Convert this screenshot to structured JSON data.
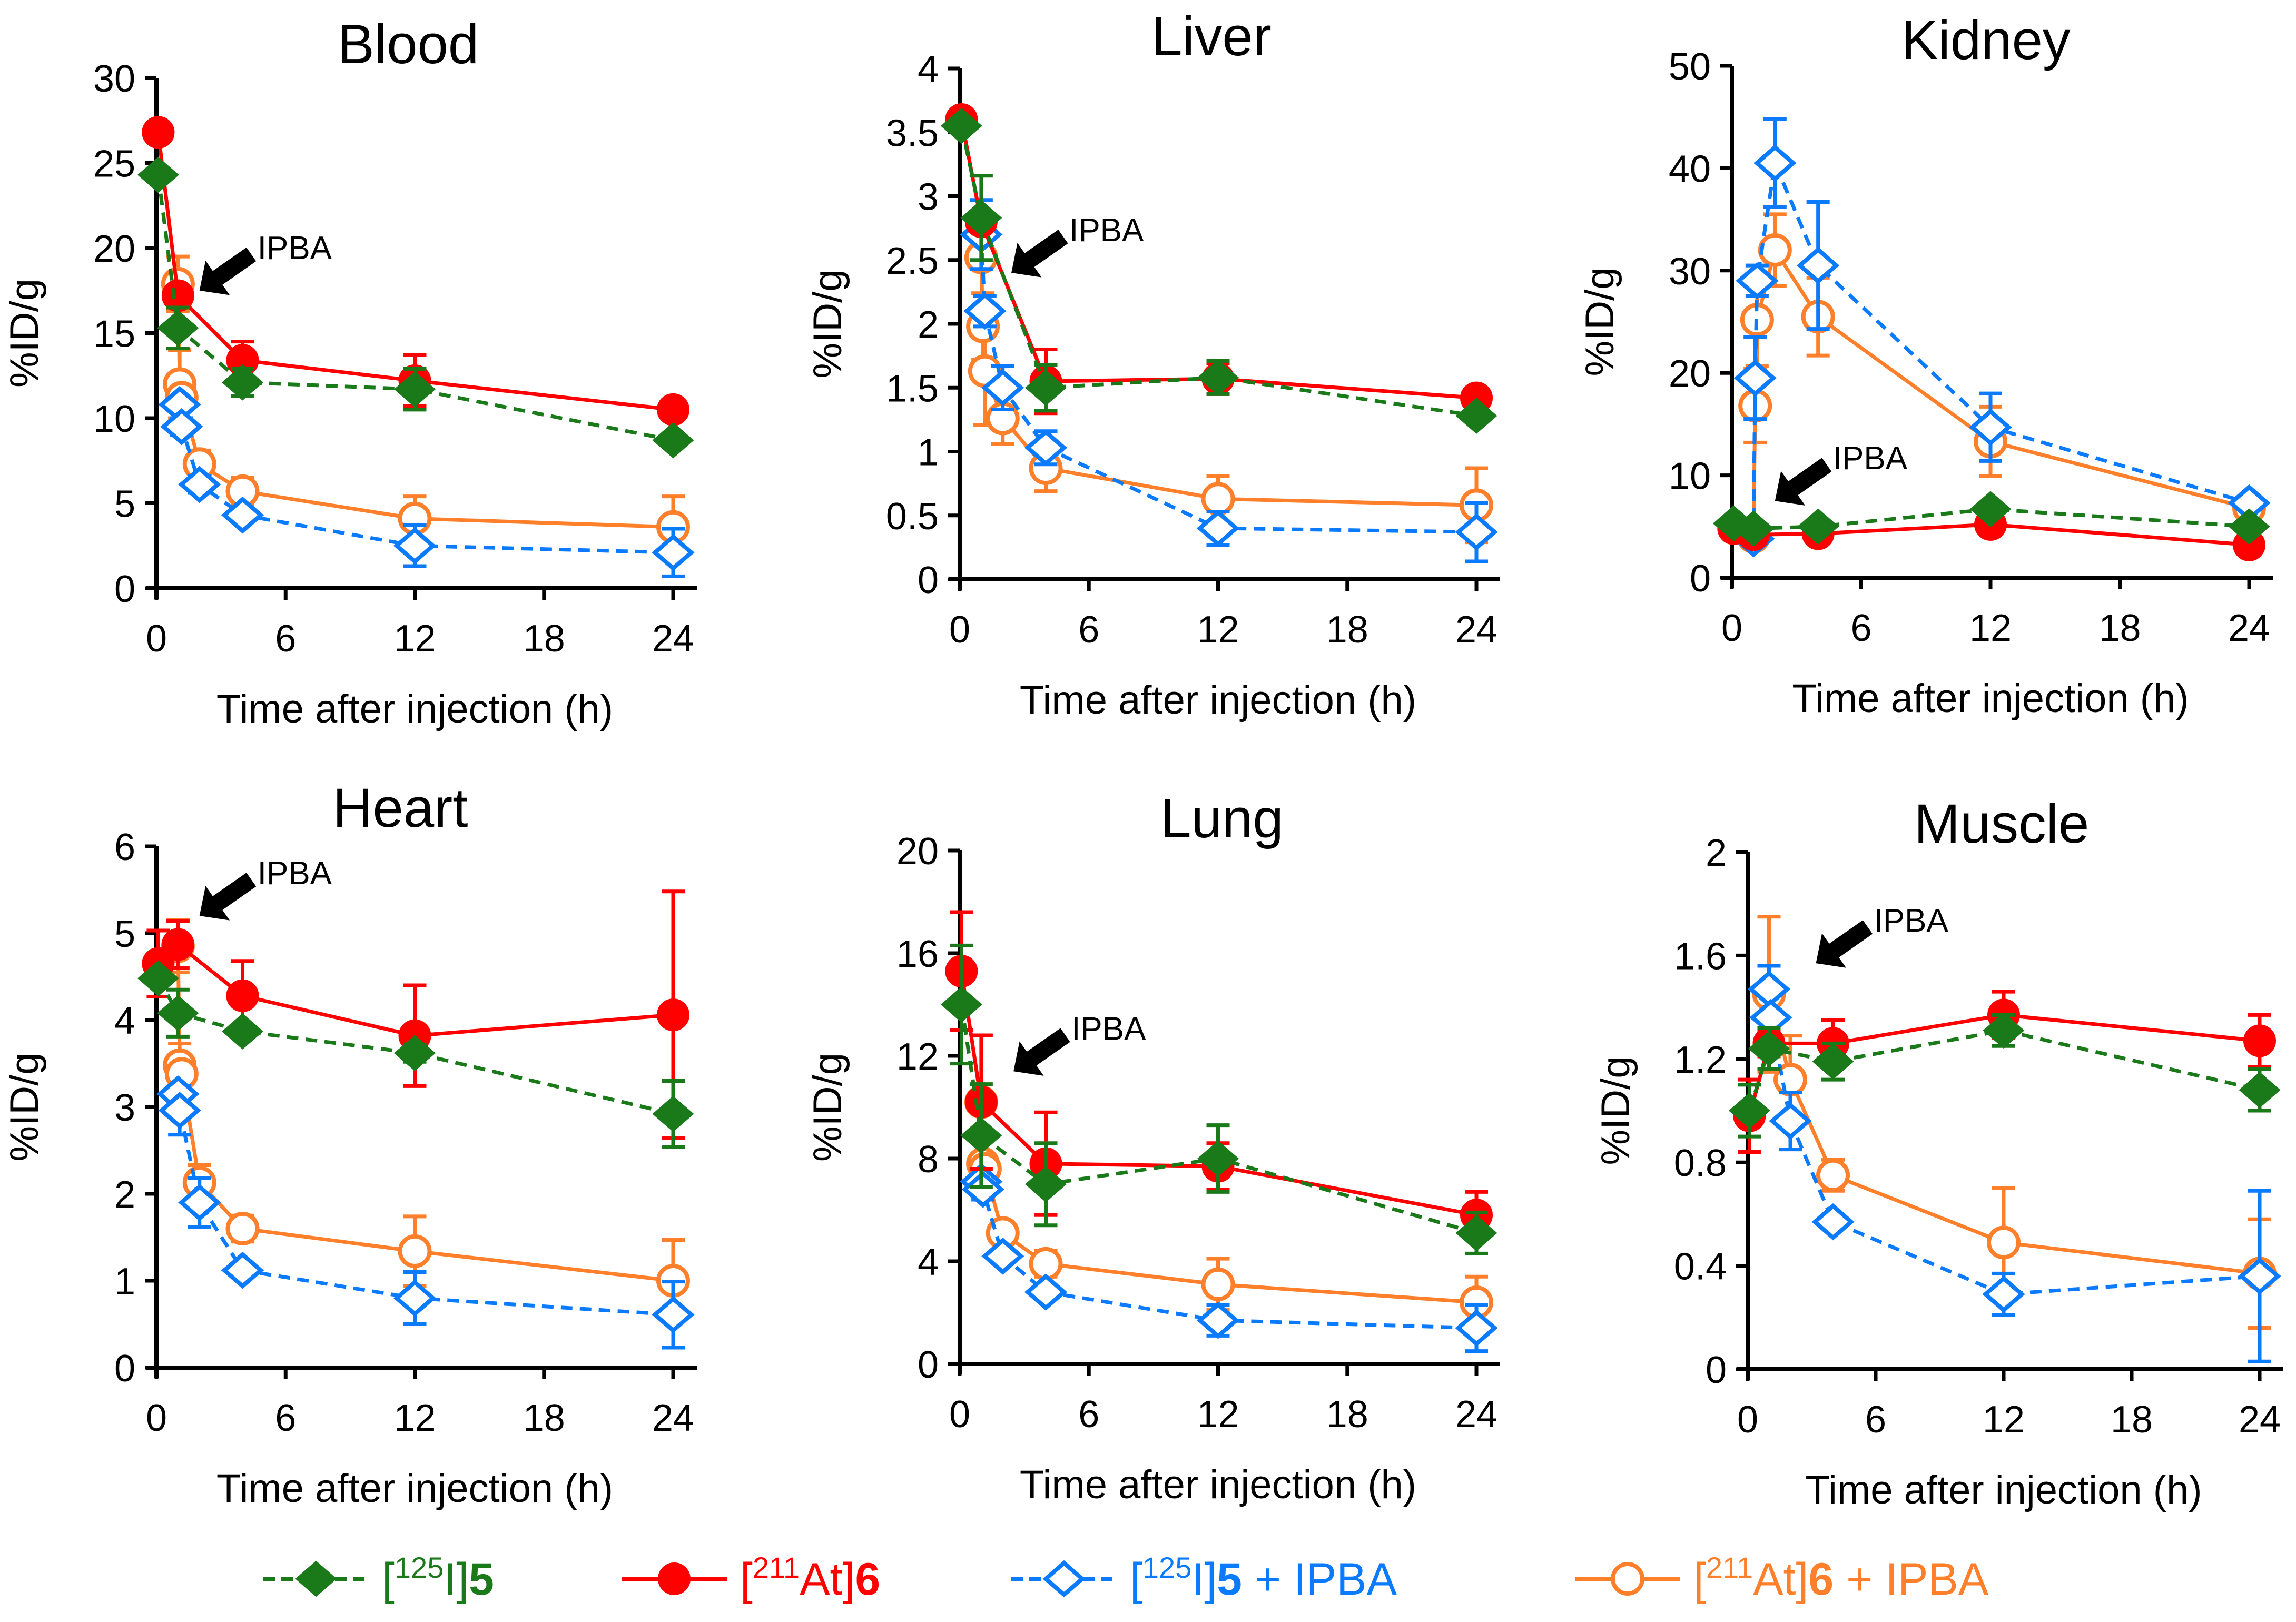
{
  "figure": {
    "legend": [
      {
        "key": "I125_5",
        "prefix": "[",
        "sup": "125",
        "mid": "I]",
        "bold": "5",
        "suffix": "",
        "color": "#1a7a1a",
        "marker": "diamond-filled",
        "dash": true
      },
      {
        "key": "At211_6",
        "prefix": "[",
        "sup": "211",
        "mid": "At]",
        "bold": "6",
        "suffix": "",
        "color": "#ff0000",
        "marker": "circle-filled",
        "dash": false
      },
      {
        "key": "I125_5_IPBA",
        "prefix": "[",
        "sup": "125",
        "mid": "I]",
        "bold": "5",
        "suffix": " + IPBA",
        "color": "#0a7aff",
        "marker": "diamond-open",
        "dash": true
      },
      {
        "key": "At211_6_IPBA",
        "prefix": "[",
        "sup": "211",
        "mid": "At]",
        "bold": "6",
        "suffix": " + IPBA",
        "color": "#ff7f2a",
        "marker": "circle-open",
        "dash": false
      }
    ],
    "annotation_label": "IPBA"
  },
  "chart_data": [
    {
      "type": "line",
      "title": "Blood",
      "xlabel": "Time after injection (h)",
      "ylabel": "%ID/g",
      "xlim": [
        0,
        24
      ],
      "xticks": [
        0,
        6,
        12,
        18,
        24
      ],
      "ylim": [
        0,
        30
      ],
      "yticks": [
        "0",
        "5",
        "10",
        "15",
        "20",
        "25",
        "30"
      ],
      "annotation": {
        "text": "IPBA",
        "x": 2.0,
        "y": 17.5
      },
      "series": [
        {
          "name": "[125I]5",
          "x": [
            0.083,
            1,
            4,
            12,
            24
          ],
          "y": [
            24.3,
            15.3,
            12.1,
            11.7,
            8.7
          ],
          "err": [
            0,
            1.2,
            0.8,
            1.2,
            0
          ]
        },
        {
          "name": "[211At]6",
          "x": [
            0.083,
            1,
            4,
            12,
            24
          ],
          "y": [
            26.8,
            17.2,
            13.4,
            12.2,
            10.5
          ],
          "err": [
            0,
            0,
            1.1,
            1.5,
            0
          ]
        },
        {
          "name": "[125I]5 + IPBA",
          "x": [
            1.08,
            1.17,
            2,
            4,
            12,
            24
          ],
          "y": [
            10.8,
            9.5,
            6.1,
            4.3,
            2.5,
            2.1
          ],
          "err": [
            0,
            0.5,
            0.5,
            0.3,
            1.2,
            1.4
          ]
        },
        {
          "name": "[211At]6 + IPBA",
          "x": [
            1,
            1.08,
            1.17,
            2,
            4,
            12,
            24
          ],
          "y": [
            17.9,
            12.0,
            11.2,
            7.3,
            5.7,
            4.1,
            3.6
          ],
          "err": [
            1.6,
            2.0,
            0.5,
            0.8,
            0.8,
            1.3,
            1.8
          ]
        }
      ]
    },
    {
      "type": "line",
      "title": "Liver",
      "xlabel": "Time after injection (h)",
      "ylabel": "%ID/g",
      "xlim": [
        0,
        24
      ],
      "xticks": [
        0,
        6,
        12,
        18,
        24
      ],
      "ylim": [
        0,
        4
      ],
      "yticks": [
        "0",
        "0.5",
        "1",
        "1.5",
        "2",
        "2.5",
        "3",
        "3.5",
        "4"
      ],
      "annotation": {
        "text": "IPBA",
        "x": 2.4,
        "y": 2.4
      },
      "series": [
        {
          "name": "[125I]5",
          "x": [
            0.083,
            1,
            4,
            12,
            24
          ],
          "y": [
            3.55,
            2.83,
            1.5,
            1.58,
            1.28
          ],
          "err": [
            0,
            0.33,
            0.18,
            0.13,
            0
          ]
        },
        {
          "name": "[211At]6",
          "x": [
            0.083,
            1,
            4,
            12,
            24
          ],
          "y": [
            3.6,
            2.8,
            1.55,
            1.57,
            1.42
          ],
          "err": [
            0,
            0,
            0.25,
            0.12,
            0
          ]
        },
        {
          "name": "[125I]5 + IPBA",
          "x": [
            1,
            1.17,
            2,
            4,
            12,
            24
          ],
          "y": [
            2.7,
            2.1,
            1.5,
            1.03,
            0.4,
            0.37
          ],
          "err": [
            0.27,
            0.12,
            0.17,
            0.13,
            0.13,
            0.23
          ]
        },
        {
          "name": "[211At]6 + IPBA",
          "x": [
            1,
            1.08,
            1.17,
            2,
            4,
            12,
            24
          ],
          "y": [
            2.52,
            1.98,
            1.63,
            1.26,
            0.87,
            0.63,
            0.58
          ],
          "err": [
            0,
            0.26,
            0.42,
            0.2,
            0.18,
            0.18,
            0.29
          ]
        }
      ]
    },
    {
      "type": "line",
      "title": "Kidney",
      "xlabel": "Time after injection (h)",
      "ylabel": "%ID/g",
      "xlim": [
        0,
        24
      ],
      "xticks": [
        0,
        6,
        12,
        18,
        24
      ],
      "ylim": [
        0,
        50
      ],
      "yticks": [
        "0",
        "10",
        "20",
        "30",
        "40",
        "50"
      ],
      "annotation": {
        "text": "IPBA",
        "x": 2.0,
        "y": 7.5
      },
      "series": [
        {
          "name": "[125I]5",
          "x": [
            0.083,
            1,
            4,
            12,
            24
          ],
          "y": [
            5.3,
            4.8,
            5.0,
            6.7,
            5.0
          ],
          "err": [
            0,
            0,
            0,
            0,
            0
          ]
        },
        {
          "name": "[211At]6",
          "x": [
            0.083,
            1,
            4,
            12,
            24
          ],
          "y": [
            4.8,
            4.2,
            4.3,
            5.2,
            3.2
          ],
          "err": [
            0,
            0,
            0,
            0,
            0
          ]
        },
        {
          "name": "[125I]5 + IPBA",
          "x": [
            1,
            1.08,
            1.17,
            2,
            4,
            12,
            24
          ],
          "y": [
            3.8,
            19.5,
            29.0,
            40.5,
            30.5,
            14.7,
            7.3
          ],
          "err": [
            0,
            4.0,
            1.5,
            4.3,
            6.2,
            3.3,
            0
          ]
        },
        {
          "name": "[211At]6 + IPBA",
          "x": [
            1,
            1.08,
            1.17,
            2,
            4,
            12,
            24
          ],
          "y": [
            4.0,
            16.8,
            25.2,
            32.0,
            25.5,
            13.3,
            6.8
          ],
          "err": [
            0,
            3.6,
            4.5,
            3.5,
            3.8,
            3.4,
            0
          ]
        }
      ]
    },
    {
      "type": "line",
      "title": "Heart",
      "xlabel": "Time after injection (h)",
      "ylabel": "%ID/g",
      "xlim": [
        0,
        24
      ],
      "xticks": [
        0,
        6,
        12,
        18,
        24
      ],
      "ylim": [
        0,
        6
      ],
      "yticks": [
        "0",
        "1",
        "2",
        "3",
        "4",
        "5",
        "6"
      ],
      "annotation": {
        "text": "IPBA",
        "x": 2.0,
        "y": 5.2
      },
      "series": [
        {
          "name": "[125I]5",
          "x": [
            0.083,
            1,
            4,
            12,
            24
          ],
          "y": [
            4.48,
            4.08,
            3.87,
            3.62,
            2.92
          ],
          "err": [
            0,
            0.27,
            0,
            0.1,
            0.38
          ]
        },
        {
          "name": "[211At]6",
          "x": [
            0.083,
            1,
            4,
            12,
            24
          ],
          "y": [
            4.65,
            4.87,
            4.28,
            3.82,
            4.06
          ],
          "err": [
            0.38,
            0.27,
            0.4,
            0.58,
            1.42
          ]
        },
        {
          "name": "[125I]5 + IPBA",
          "x": [
            1,
            1.08,
            2,
            4,
            12,
            24
          ],
          "y": [
            3.15,
            2.96,
            1.9,
            1.12,
            0.8,
            0.61
          ],
          "err": [
            0,
            0.28,
            0.28,
            0,
            0.3,
            0.38
          ]
        },
        {
          "name": "[211At]6 + IPBA",
          "x": [
            1,
            1.08,
            1.17,
            2,
            4,
            12,
            24
          ],
          "y": [
            4.85,
            3.48,
            3.38,
            2.13,
            1.6,
            1.34,
            1.0
          ],
          "err": [
            0.3,
            0.25,
            0,
            0.2,
            0.15,
            0.4,
            0.47
          ]
        }
      ]
    },
    {
      "type": "line",
      "title": "Lung",
      "xlabel": "Time after injection (h)",
      "ylabel": "%ID/g",
      "xlim": [
        0,
        24
      ],
      "xticks": [
        0,
        6,
        12,
        18,
        24
      ],
      "ylim": [
        0,
        20
      ],
      "yticks": [
        "0",
        "4",
        "8",
        "12",
        "16",
        "20"
      ],
      "annotation": {
        "text": "IPBA",
        "x": 2.5,
        "y": 11.4
      },
      "series": [
        {
          "name": "[125I]5",
          "x": [
            0.083,
            1,
            4,
            12,
            24
          ],
          "y": [
            14.0,
            8.9,
            7.0,
            8.0,
            5.1
          ],
          "err": [
            2.3,
            2.0,
            1.6,
            1.3,
            0.8
          ]
        },
        {
          "name": "[211At]6",
          "x": [
            0.083,
            1,
            4,
            12,
            24
          ],
          "y": [
            15.3,
            10.2,
            7.8,
            7.7,
            5.8
          ],
          "err": [
            2.3,
            2.6,
            2.0,
            0.9,
            0.9
          ]
        },
        {
          "name": "[125I]5 + IPBA",
          "x": [
            1,
            1.08,
            2,
            4,
            12,
            24
          ],
          "y": [
            7.1,
            6.8,
            4.2,
            2.8,
            1.7,
            1.4
          ],
          "err": [
            0,
            0.4,
            0,
            0,
            0.6,
            0.9
          ]
        },
        {
          "name": "[211At]6 + IPBA",
          "x": [
            1,
            1.08,
            1.17,
            2,
            4,
            12,
            24
          ],
          "y": [
            10.2,
            7.8,
            7.6,
            5.1,
            3.9,
            3.1,
            2.4
          ],
          "err": [
            0,
            0,
            0,
            0,
            0.5,
            1.0,
            1.0
          ]
        }
      ]
    },
    {
      "type": "line",
      "title": "Muscle",
      "xlabel": "Time after injection (h)",
      "ylabel": "%ID/g",
      "xlim": [
        0,
        24
      ],
      "xticks": [
        0,
        6,
        12,
        18,
        24
      ],
      "ylim": [
        0,
        2
      ],
      "yticks": [
        "0",
        "0.4",
        "0.8",
        "1.2",
        "1.6",
        "2"
      ],
      "annotation": {
        "text": "IPBA",
        "x": 3.2,
        "y": 1.57
      },
      "series": [
        {
          "name": "[125I]5",
          "x": [
            0.083,
            1,
            4,
            12,
            24
          ],
          "y": [
            1.0,
            1.24,
            1.19,
            1.31,
            1.08
          ],
          "err": [
            0.1,
            0.08,
            0.07,
            0.06,
            0.08
          ]
        },
        {
          "name": "[211At]6",
          "x": [
            0.083,
            1,
            4,
            12,
            24
          ],
          "y": [
            0.98,
            1.26,
            1.26,
            1.37,
            1.27
          ],
          "err": [
            0.14,
            0.05,
            0.09,
            0.09,
            0.1
          ]
        },
        {
          "name": "[125I]5 + IPBA",
          "x": [
            1,
            1.08,
            2,
            4,
            12,
            24
          ],
          "y": [
            1.47,
            1.36,
            0.96,
            0.57,
            0.29,
            0.36
          ],
          "err": [
            0.09,
            0,
            0.11,
            0,
            0.08,
            0.33
          ]
        },
        {
          "name": "[211At]6 + IPBA",
          "x": [
            1,
            2,
            4,
            12,
            24
          ],
          "y": [
            1.45,
            1.12,
            0.75,
            0.49,
            0.37
          ],
          "err": [
            0.3,
            0.17,
            0.06,
            0.21,
            0.21
          ]
        }
      ]
    }
  ]
}
